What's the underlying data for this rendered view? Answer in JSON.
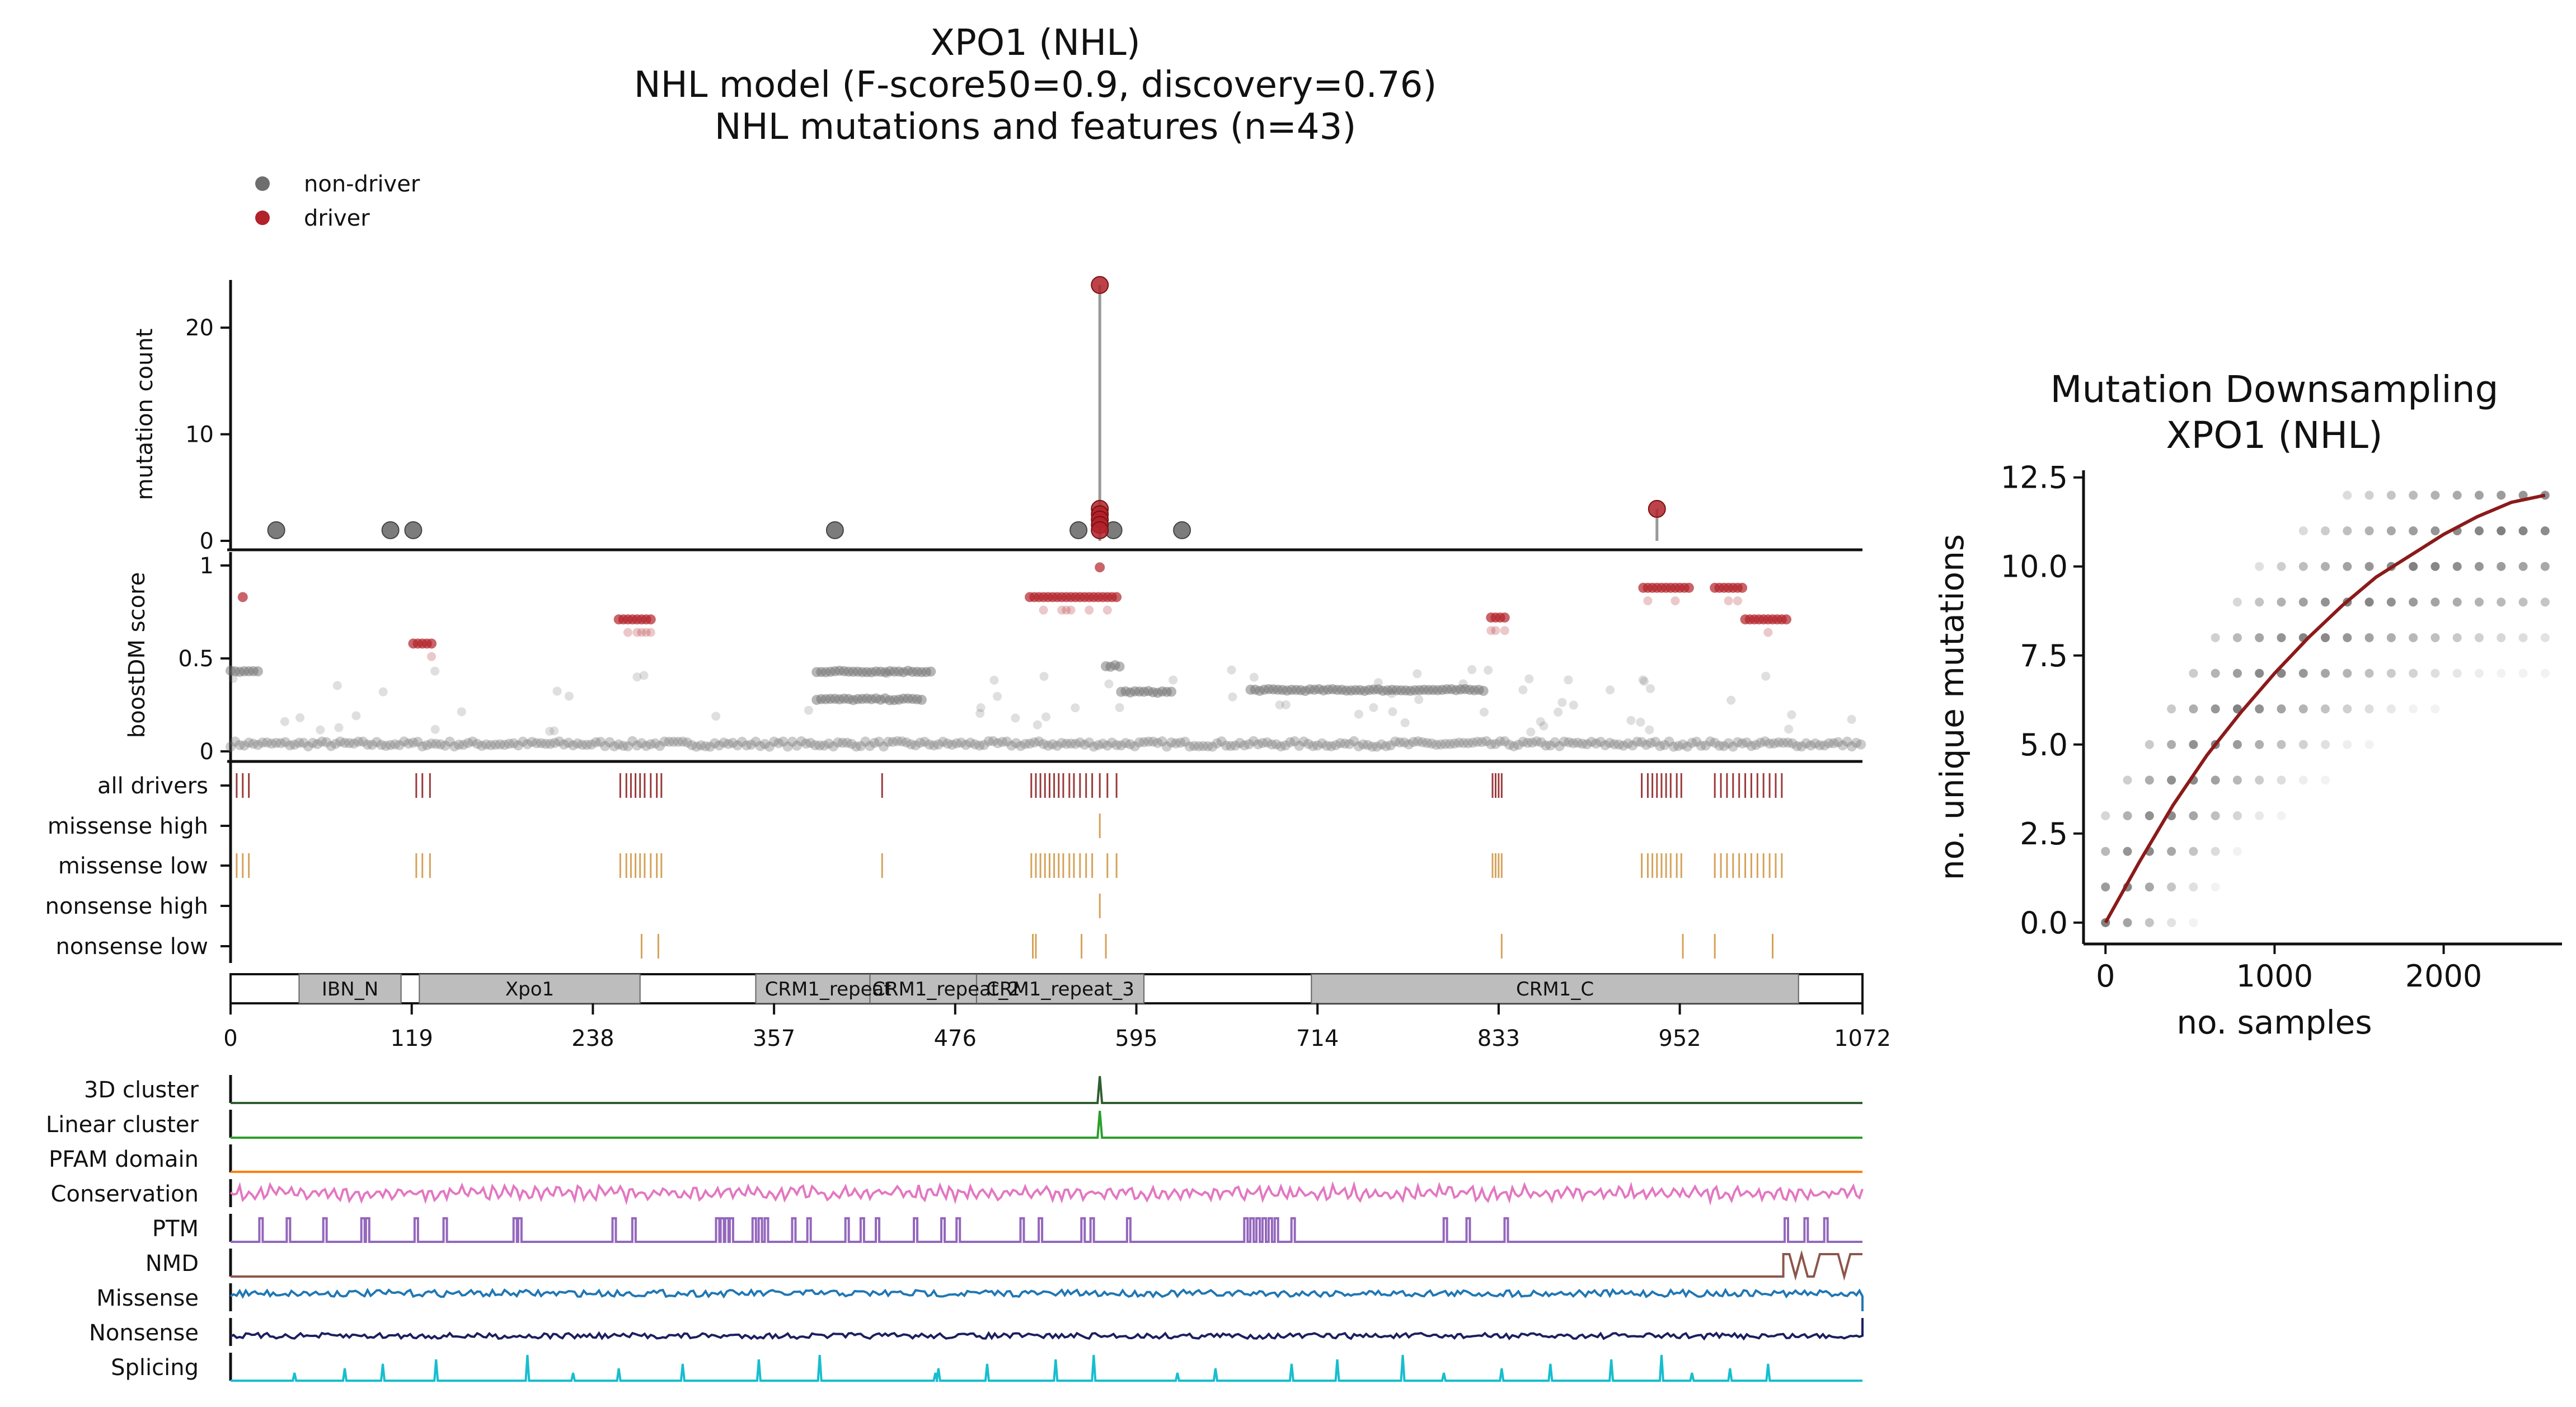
{
  "titles": {
    "main": [
      "XPO1 (NHL)",
      "NHL model (F-score50=0.9, discovery=0.76)",
      "NHL mutations and features (n=43)"
    ],
    "right": [
      "Mutation Downsampling",
      "XPO1 (NHL)"
    ]
  },
  "colors": {
    "non_driver": "#6e6e6e",
    "driver": "#b2222a",
    "driver_mark": "#9a3a3a",
    "consequence_mark": "#d4a35a",
    "domain_fill": "#bdbdbd",
    "fit_line": "#8b1a1a",
    "feat_3d": "#2f5e2f",
    "feat_linear": "#2ca02c",
    "feat_pfam": "#ff7f0e",
    "feat_cons": "#e377c2",
    "feat_ptm": "#9467bd",
    "feat_nmd": "#8c564b",
    "feat_missense": "#1f77b4",
    "feat_nonsense": "#1a1f5e",
    "feat_splicing": "#17becf"
  },
  "chart_data": [
    {
      "type": "scatter",
      "name_hint": "mutation lollipop",
      "legend": [
        "non-driver",
        "driver"
      ],
      "legend_placement": "top-left",
      "ylabel": "mutation count",
      "y_ticks": [
        0,
        10,
        20
      ],
      "ylim": [
        0,
        25
      ],
      "xlim": [
        0,
        1072
      ],
      "nondriver_points": [
        {
          "x": 30,
          "y": 1
        },
        {
          "x": 105,
          "y": 1
        },
        {
          "x": 120,
          "y": 1
        },
        {
          "x": 397,
          "y": 1
        },
        {
          "x": 557,
          "y": 1
        },
        {
          "x": 580,
          "y": 1
        },
        {
          "x": 625,
          "y": 1
        }
      ],
      "driver_stems": [
        {
          "x": 571,
          "y": 24
        },
        {
          "x": 937,
          "y": 3
        }
      ],
      "driver_points": [
        {
          "x": 571,
          "y": 24
        },
        {
          "x": 571,
          "y": 3
        },
        {
          "x": 571,
          "y": 2.5
        },
        {
          "x": 571,
          "y": 2
        },
        {
          "x": 571,
          "y": 1.5
        },
        {
          "x": 571,
          "y": 1
        },
        {
          "x": 937,
          "y": 3
        }
      ]
    },
    {
      "type": "scatter",
      "name_hint": "boostDM score",
      "ylabel": "boostDM score",
      "y_ticks": [
        0,
        0.5,
        1
      ],
      "y_tick_labels": [
        "0",
        "0.5",
        "1"
      ],
      "ylim": [
        0,
        1.05
      ],
      "xlim": [
        0,
        1072
      ],
      "driver_clusters": [
        {
          "x0": 8,
          "x1": 8,
          "y": 0.83
        },
        {
          "x0": 120,
          "x1": 132,
          "y": 0.58
        },
        {
          "x0": 255,
          "x1": 278,
          "y": 0.71
        },
        {
          "x0": 525,
          "x1": 582,
          "y": 0.83
        },
        {
          "x0": 571,
          "x1": 571,
          "y": 0.99
        },
        {
          "x0": 828,
          "x1": 838,
          "y": 0.72
        },
        {
          "x0": 928,
          "x1": 958,
          "y": 0.88
        },
        {
          "x0": 975,
          "x1": 995,
          "y": 0.88
        },
        {
          "x0": 995,
          "x1": 1023,
          "y": 0.71
        }
      ],
      "nondriver_clusters": [
        {
          "x0": 0,
          "x1": 20,
          "y": 0.43
        },
        {
          "x0": 385,
          "x1": 460,
          "y": 0.43
        },
        {
          "x0": 385,
          "x1": 455,
          "y": 0.28
        },
        {
          "x0": 585,
          "x1": 620,
          "y": 0.32
        },
        {
          "x0": 670,
          "x1": 825,
          "y": 0.33
        },
        {
          "x0": 575,
          "x1": 585,
          "y": 0.46
        },
        {
          "x0": 0,
          "x1": 1072,
          "y": 0.04
        }
      ]
    },
    {
      "type": "table",
      "name_hint": "consequence tracks",
      "rows": [
        "all drivers",
        "missense high",
        "missense low",
        "nonsense high",
        "nonsense low"
      ],
      "positions": {
        "all drivers": [
          4,
          8,
          12,
          122,
          126,
          131,
          256,
          260,
          263,
          266,
          269,
          272,
          276,
          280,
          283,
          428,
          526,
          529,
          532,
          535,
          538,
          541,
          544,
          547,
          551,
          554,
          558,
          562,
          566,
          571,
          576,
          582,
          829,
          831,
          833,
          835,
          927,
          931,
          934,
          937,
          940,
          943,
          946,
          950,
          953,
          975,
          979,
          983,
          987,
          991,
          995,
          999,
          1003,
          1007,
          1011,
          1015,
          1019
        ],
        "missense high": [
          571
        ],
        "missense low": [
          4,
          8,
          12,
          122,
          126,
          131,
          256,
          260,
          263,
          266,
          269,
          272,
          276,
          280,
          283,
          428,
          526,
          529,
          532,
          535,
          538,
          541,
          544,
          547,
          551,
          554,
          558,
          562,
          566,
          576,
          582,
          829,
          831,
          833,
          835,
          927,
          931,
          934,
          937,
          940,
          943,
          946,
          950,
          953,
          975,
          979,
          983,
          987,
          991,
          995,
          999,
          1003,
          1007,
          1011,
          1015,
          1019
        ],
        "nonsense high": [
          571
        ],
        "nonsense low": [
          270,
          281,
          527,
          529,
          559,
          575,
          835,
          954,
          975,
          1013
        ]
      }
    },
    {
      "type": "bar",
      "name_hint": "protein domains",
      "x_ticks": [
        0,
        119,
        238,
        357,
        476,
        595,
        714,
        833,
        952,
        1072
      ],
      "domains": [
        {
          "label": "IBN_N",
          "start": 45,
          "end": 112
        },
        {
          "label": "Xpo1",
          "start": 124,
          "end": 269
        },
        {
          "label": "CRM1_repeat",
          "start": 345,
          "end": 440
        },
        {
          "label": "CRM1_repeat_2",
          "start": 420,
          "end": 520
        },
        {
          "label": "CRM1_repeat_3",
          "start": 490,
          "end": 600
        },
        {
          "label": "CRM1_C",
          "start": 710,
          "end": 1030
        }
      ]
    },
    {
      "type": "line",
      "name_hint": "feature tracks",
      "tracks": [
        "3D cluster",
        "Linear cluster",
        "PFAM domain",
        "Conservation",
        "PTM",
        "NMD",
        "Missense",
        "Nonsense",
        "Splicing"
      ],
      "cluster_peak_x": 571,
      "ptm_sites": [
        20,
        38,
        62,
        87,
        90,
        122,
        141,
        187,
        190,
        252,
        265,
        320,
        323,
        326,
        329,
        344,
        348,
        352,
        370,
        380,
        405,
        415,
        425,
        450,
        468,
        478,
        520,
        532,
        560,
        566,
        590,
        667,
        671,
        675,
        679,
        683,
        687,
        698,
        798,
        813,
        838,
        1022,
        1035,
        1048
      ],
      "nmd_range": [
        1020,
        1072
      ],
      "splicing_peaks": [
        42,
        75,
        100,
        135,
        195,
        225,
        255,
        297,
        347,
        387,
        463,
        465,
        497,
        542,
        567,
        622,
        647,
        697,
        727,
        770,
        797,
        835,
        867,
        907,
        940,
        960,
        985,
        1010
      ]
    },
    {
      "type": "scatter",
      "name_hint": "mutation downsampling",
      "xlabel": "no. samples",
      "ylabel": "no. unique mutations",
      "x_ticks": [
        0,
        1000,
        2000
      ],
      "y_ticks": [
        0,
        2.5,
        5,
        7.5,
        10,
        12.5
      ],
      "y_tick_labels": [
        "0.0",
        "2.5",
        "5.0",
        "7.5",
        "10.0",
        "12.5"
      ],
      "xlim": [
        -130,
        2700
      ],
      "ylim": [
        -0.6,
        12.7
      ],
      "fit_curve": [
        [
          0,
          0
        ],
        [
          200,
          1.7
        ],
        [
          400,
          3.3
        ],
        [
          600,
          4.7
        ],
        [
          800,
          5.9
        ],
        [
          1000,
          7.0
        ],
        [
          1200,
          8.0
        ],
        [
          1400,
          8.9
        ],
        [
          1600,
          9.7
        ],
        [
          1800,
          10.3
        ],
        [
          2000,
          10.9
        ],
        [
          2200,
          11.4
        ],
        [
          2400,
          11.8
        ],
        [
          2600,
          12.0
        ]
      ],
      "x_grid_step": 130,
      "point_max_x": 2600,
      "point_max_y": 12
    }
  ]
}
